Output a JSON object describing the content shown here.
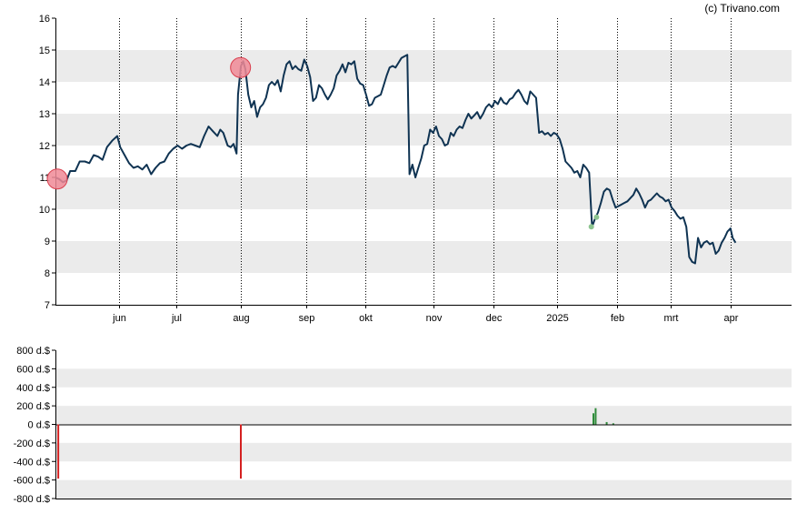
{
  "copyright": "(c) Trivano.com",
  "colors": {
    "price_line": "#0f3352",
    "band": "#ebebeb",
    "marker_fill": "#f08a96",
    "marker_stroke": "#d9404f",
    "buy_bar": "#2e8b3a",
    "sell_bar": "#d42020",
    "small_dot": "#8cc48f"
  },
  "chart_data": [
    {
      "type": "line",
      "title": "",
      "ylim": [
        7,
        16
      ],
      "yticks": [
        "7",
        "8",
        "9",
        "10",
        "11",
        "12",
        "13",
        "14",
        "15",
        "16"
      ],
      "grid": "alternating horizontal bands, dotted vertical month lines",
      "xticks": [
        {
          "label": "jun",
          "pos": 0.087
        },
        {
          "label": "jul",
          "pos": 0.164
        },
        {
          "label": "aug",
          "pos": 0.252
        },
        {
          "label": "sep",
          "pos": 0.341
        },
        {
          "label": "okt",
          "pos": 0.421
        },
        {
          "label": "nov",
          "pos": 0.514
        },
        {
          "label": "dec",
          "pos": 0.595
        },
        {
          "label": "2025",
          "pos": 0.681
        },
        {
          "label": "feb",
          "pos": 0.763
        },
        {
          "label": "mrt",
          "pos": 0.836
        },
        {
          "label": "apr",
          "pos": 0.917
        }
      ],
      "series": [
        {
          "values": [
            [
              0.0,
              11.0
            ],
            [
              0.005,
              10.95
            ],
            [
              0.01,
              10.85
            ],
            [
              0.015,
              10.9
            ],
            [
              0.02,
              11.2
            ],
            [
              0.027,
              11.2
            ],
            [
              0.033,
              11.5
            ],
            [
              0.04,
              11.5
            ],
            [
              0.046,
              11.45
            ],
            [
              0.052,
              11.7
            ],
            [
              0.058,
              11.65
            ],
            [
              0.064,
              11.55
            ],
            [
              0.07,
              11.95
            ],
            [
              0.077,
              12.15
            ],
            [
              0.084,
              12.3
            ],
            [
              0.088,
              11.95
            ],
            [
              0.094,
              11.7
            ],
            [
              0.1,
              11.45
            ],
            [
              0.106,
              11.3
            ],
            [
              0.112,
              11.35
            ],
            [
              0.118,
              11.25
            ],
            [
              0.124,
              11.4
            ],
            [
              0.13,
              11.1
            ],
            [
              0.136,
              11.3
            ],
            [
              0.142,
              11.45
            ],
            [
              0.148,
              11.5
            ],
            [
              0.154,
              11.75
            ],
            [
              0.16,
              11.9
            ],
            [
              0.166,
              12.0
            ],
            [
              0.172,
              11.9
            ],
            [
              0.178,
              12.0
            ],
            [
              0.184,
              12.05
            ],
            [
              0.19,
              12.0
            ],
            [
              0.196,
              11.95
            ],
            [
              0.202,
              12.3
            ],
            [
              0.208,
              12.6
            ],
            [
              0.214,
              12.45
            ],
            [
              0.22,
              12.3
            ],
            [
              0.224,
              12.5
            ],
            [
              0.228,
              12.4
            ],
            [
              0.234,
              12.0
            ],
            [
              0.238,
              11.95
            ],
            [
              0.242,
              12.05
            ],
            [
              0.246,
              11.75
            ],
            [
              0.248,
              13.6
            ],
            [
              0.252,
              14.5
            ],
            [
              0.255,
              14.65
            ],
            [
              0.258,
              14.4
            ],
            [
              0.262,
              13.6
            ],
            [
              0.266,
              13.2
            ],
            [
              0.27,
              13.4
            ],
            [
              0.274,
              12.9
            ],
            [
              0.278,
              13.2
            ],
            [
              0.282,
              13.3
            ],
            [
              0.286,
              13.5
            ],
            [
              0.29,
              13.9
            ],
            [
              0.294,
              14.0
            ],
            [
              0.298,
              13.9
            ],
            [
              0.302,
              14.05
            ],
            [
              0.306,
              13.7
            ],
            [
              0.31,
              14.2
            ],
            [
              0.314,
              14.55
            ],
            [
              0.318,
              14.65
            ],
            [
              0.322,
              14.4
            ],
            [
              0.326,
              14.5
            ],
            [
              0.33,
              14.4
            ],
            [
              0.334,
              14.35
            ],
            [
              0.338,
              14.7
            ],
            [
              0.342,
              14.5
            ],
            [
              0.346,
              14.15
            ],
            [
              0.35,
              13.4
            ],
            [
              0.354,
              13.5
            ],
            [
              0.358,
              13.9
            ],
            [
              0.362,
              13.8
            ],
            [
              0.366,
              13.6
            ],
            [
              0.37,
              13.45
            ],
            [
              0.374,
              13.6
            ],
            [
              0.378,
              13.8
            ],
            [
              0.382,
              14.2
            ],
            [
              0.386,
              14.35
            ],
            [
              0.39,
              14.55
            ],
            [
              0.394,
              14.3
            ],
            [
              0.398,
              14.6
            ],
            [
              0.402,
              14.55
            ],
            [
              0.406,
              14.65
            ],
            [
              0.41,
              14.1
            ],
            [
              0.414,
              13.95
            ],
            [
              0.418,
              13.9
            ],
            [
              0.422,
              13.6
            ],
            [
              0.426,
              13.25
            ],
            [
              0.43,
              13.3
            ],
            [
              0.434,
              13.5
            ],
            [
              0.438,
              13.55
            ],
            [
              0.442,
              13.6
            ],
            [
              0.446,
              13.9
            ],
            [
              0.45,
              14.2
            ],
            [
              0.454,
              14.45
            ],
            [
              0.458,
              14.5
            ],
            [
              0.462,
              14.45
            ],
            [
              0.466,
              14.6
            ],
            [
              0.47,
              14.75
            ],
            [
              0.474,
              14.8
            ],
            [
              0.478,
              14.85
            ],
            [
              0.481,
              11.1
            ],
            [
              0.485,
              11.4
            ],
            [
              0.489,
              11.0
            ],
            [
              0.493,
              11.3
            ],
            [
              0.497,
              11.6
            ],
            [
              0.501,
              12.0
            ],
            [
              0.505,
              12.05
            ],
            [
              0.509,
              12.5
            ],
            [
              0.513,
              12.4
            ],
            [
              0.517,
              12.6
            ],
            [
              0.521,
              12.3
            ],
            [
              0.525,
              12.2
            ],
            [
              0.529,
              12.0
            ],
            [
              0.533,
              12.05
            ],
            [
              0.537,
              12.4
            ],
            [
              0.541,
              12.3
            ],
            [
              0.545,
              12.5
            ],
            [
              0.549,
              12.6
            ],
            [
              0.553,
              12.55
            ],
            [
              0.557,
              12.8
            ],
            [
              0.561,
              13.0
            ],
            [
              0.565,
              12.85
            ],
            [
              0.569,
              12.95
            ],
            [
              0.573,
              13.05
            ],
            [
              0.577,
              12.85
            ],
            [
              0.581,
              13.0
            ],
            [
              0.585,
              13.2
            ],
            [
              0.589,
              13.3
            ],
            [
              0.593,
              13.2
            ],
            [
              0.597,
              13.4
            ],
            [
              0.601,
              13.3
            ],
            [
              0.605,
              13.5
            ],
            [
              0.609,
              13.35
            ],
            [
              0.613,
              13.3
            ],
            [
              0.617,
              13.45
            ],
            [
              0.621,
              13.5
            ],
            [
              0.625,
              13.65
            ],
            [
              0.629,
              13.75
            ],
            [
              0.633,
              13.6
            ],
            [
              0.637,
              13.4
            ],
            [
              0.641,
              13.3
            ],
            [
              0.645,
              13.7
            ],
            [
              0.649,
              13.6
            ],
            [
              0.653,
              13.5
            ],
            [
              0.657,
              12.4
            ],
            [
              0.661,
              12.45
            ],
            [
              0.665,
              12.35
            ],
            [
              0.669,
              12.4
            ],
            [
              0.673,
              12.3
            ],
            [
              0.677,
              12.4
            ],
            [
              0.681,
              12.35
            ],
            [
              0.685,
              12.2
            ],
            [
              0.689,
              11.9
            ],
            [
              0.693,
              11.5
            ],
            [
              0.697,
              11.4
            ],
            [
              0.701,
              11.3
            ],
            [
              0.705,
              11.15
            ],
            [
              0.709,
              11.2
            ],
            [
              0.713,
              11.0
            ],
            [
              0.717,
              11.4
            ],
            [
              0.721,
              11.3
            ],
            [
              0.725,
              11.15
            ],
            [
              0.729,
              9.45
            ],
            [
              0.733,
              9.7
            ],
            [
              0.737,
              9.9
            ],
            [
              0.741,
              10.2
            ],
            [
              0.745,
              10.55
            ],
            [
              0.749,
              10.65
            ],
            [
              0.753,
              10.6
            ],
            [
              0.757,
              10.3
            ],
            [
              0.761,
              10.05
            ],
            [
              0.765,
              10.1
            ],
            [
              0.769,
              10.15
            ],
            [
              0.773,
              10.2
            ],
            [
              0.777,
              10.25
            ],
            [
              0.781,
              10.35
            ],
            [
              0.785,
              10.45
            ],
            [
              0.789,
              10.65
            ],
            [
              0.793,
              10.5
            ],
            [
              0.797,
              10.3
            ],
            [
              0.801,
              10.05
            ],
            [
              0.805,
              10.25
            ],
            [
              0.809,
              10.3
            ],
            [
              0.813,
              10.4
            ],
            [
              0.817,
              10.5
            ],
            [
              0.821,
              10.4
            ],
            [
              0.825,
              10.35
            ],
            [
              0.829,
              10.25
            ],
            [
              0.833,
              10.3
            ],
            [
              0.837,
              10.05
            ],
            [
              0.841,
              9.95
            ],
            [
              0.845,
              9.8
            ],
            [
              0.849,
              9.7
            ],
            [
              0.853,
              9.75
            ],
            [
              0.857,
              9.45
            ],
            [
              0.861,
              8.5
            ],
            [
              0.865,
              8.35
            ],
            [
              0.869,
              8.3
            ],
            [
              0.873,
              9.1
            ],
            [
              0.877,
              8.8
            ],
            [
              0.881,
              8.95
            ],
            [
              0.885,
              9.0
            ],
            [
              0.889,
              8.9
            ],
            [
              0.893,
              8.95
            ],
            [
              0.897,
              8.6
            ],
            [
              0.901,
              8.7
            ],
            [
              0.905,
              8.95
            ],
            [
              0.909,
              9.1
            ],
            [
              0.913,
              9.3
            ],
            [
              0.917,
              9.4
            ],
            [
              0.92,
              9.1
            ],
            [
              0.924,
              8.95
            ]
          ]
        }
      ],
      "markers": [
        [
          0.0,
          10.95
        ],
        [
          0.249,
          14.45
        ]
      ],
      "small_dots": [
        [
          0.728,
          9.45
        ],
        [
          0.735,
          9.75
        ]
      ]
    },
    {
      "type": "bar",
      "title": "",
      "ylim": [
        -800,
        800
      ],
      "yticks": [
        "800 d.$",
        "600 d.$",
        "400 d.$",
        "200 d.$",
        "0 d.$",
        "-200 d.$",
        "-400 d.$",
        "-600 d.$",
        "-800 d.$"
      ],
      "grid": "alternating horizontal bands",
      "bars": [
        {
          "x": 0.002,
          "value": -585,
          "kind": "sell"
        },
        {
          "x": 0.25,
          "value": -585,
          "kind": "sell"
        },
        {
          "x": 0.729,
          "value": 120,
          "kind": "buy"
        },
        {
          "x": 0.732,
          "value": 175,
          "kind": "buy"
        },
        {
          "x": 0.747,
          "value": 25,
          "kind": "buy"
        },
        {
          "x": 0.756,
          "value": 12,
          "kind": "buy"
        }
      ]
    }
  ]
}
